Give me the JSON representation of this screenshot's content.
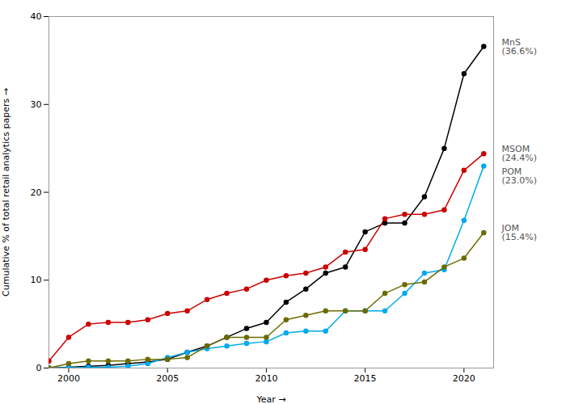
{
  "chart_data": {
    "type": "line",
    "xlabel": "Year",
    "ylabel": "Cumulative % of total retail analytics papers",
    "x": [
      1999,
      2000,
      2001,
      2002,
      2003,
      2004,
      2005,
      2006,
      2007,
      2008,
      2009,
      2010,
      2011,
      2012,
      2013,
      2014,
      2015,
      2016,
      2017,
      2018,
      2019,
      2020,
      2021
    ],
    "series": [
      {
        "name": "MnS",
        "color": "#000000",
        "values": [
          0.0,
          0.1,
          0.2,
          0.3,
          0.5,
          0.7,
          1.0,
          1.8,
          2.5,
          3.5,
          4.5,
          5.2,
          7.5,
          9.0,
          10.8,
          11.5,
          15.5,
          16.5,
          16.5,
          19.5,
          25.0,
          33.5,
          36.6
        ]
      },
      {
        "name": "MSOM",
        "color": "#cc0000",
        "values": [
          0.8,
          3.5,
          5.0,
          5.2,
          5.2,
          5.5,
          6.2,
          6.5,
          7.8,
          8.5,
          9.0,
          10.0,
          10.5,
          10.8,
          11.5,
          13.2,
          13.5,
          17.0,
          17.5,
          17.5,
          18.0,
          22.5,
          24.4
        ]
      },
      {
        "name": "POM",
        "color": "#00aaee",
        "values": [
          0.0,
          0.05,
          0.1,
          0.1,
          0.2,
          0.5,
          1.2,
          1.8,
          2.2,
          2.5,
          2.8,
          3.0,
          4.0,
          4.2,
          4.2,
          6.5,
          6.5,
          6.5,
          8.5,
          10.8,
          11.2,
          16.8,
          23.0
        ]
      },
      {
        "name": "JOM",
        "color": "#6b6b00",
        "values": [
          0.0,
          0.5,
          0.8,
          0.8,
          0.8,
          1.0,
          1.0,
          1.2,
          2.5,
          3.5,
          3.5,
          3.5,
          5.5,
          6.0,
          6.5,
          6.5,
          6.5,
          8.5,
          9.5,
          9.8,
          11.5,
          12.5,
          15.4
        ]
      }
    ],
    "xlim": [
      1999,
      2021.5
    ],
    "ylim": [
      0,
      40
    ],
    "xticks": [
      2000,
      2005,
      2010,
      2015,
      2020
    ],
    "yticks": [
      0,
      10,
      20,
      30,
      40
    ],
    "marker": "circle",
    "grid": false,
    "annotations": [
      {
        "label": "MnS",
        "pct": "(36.6%)"
      },
      {
        "label": "MSOM",
        "pct": "(24.4%)"
      },
      {
        "label": "POM",
        "pct": "(23.0%)"
      },
      {
        "label": "JOM",
        "pct": "(15.4%)"
      }
    ]
  }
}
